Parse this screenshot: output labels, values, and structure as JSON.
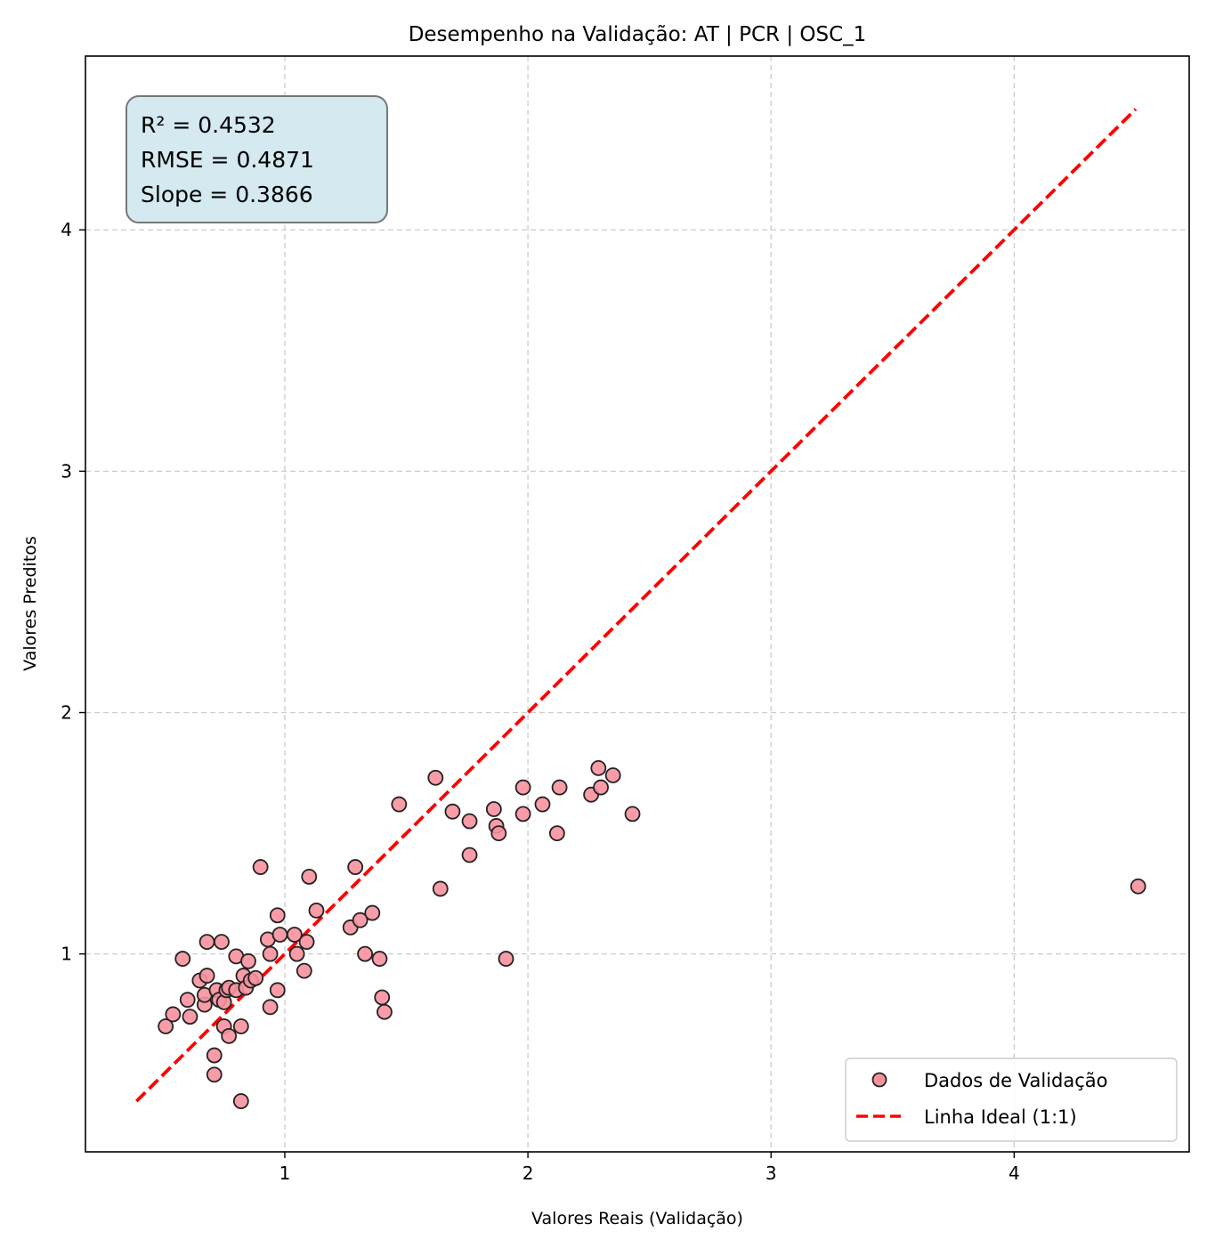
{
  "chart_data": {
    "type": "scatter",
    "title": "Desempenho na Validação: AT | PCR | OSC_1",
    "xlabel": "Valores Reais (Validação)",
    "ylabel": "Valores Preditos",
    "xlim": [
      0.18,
      4.72
    ],
    "ylim": [
      0.18,
      4.72
    ],
    "xticks": [
      1,
      2,
      3,
      4
    ],
    "yticks": [
      1,
      2,
      3,
      4
    ],
    "grid": true,
    "legend_position": "lower-right",
    "stats_box": {
      "lines": [
        "R² = 0.4532",
        "RMSE = 0.4871",
        "Slope = 0.3866"
      ],
      "position": "top-left"
    },
    "series": [
      {
        "name": "Dados de Validação",
        "kind": "scatter",
        "color": "#f7919f",
        "edge_color": "#222222",
        "points": [
          [
            0.51,
            0.7
          ],
          [
            0.54,
            0.75
          ],
          [
            0.58,
            0.98
          ],
          [
            0.6,
            0.81
          ],
          [
            0.61,
            0.74
          ],
          [
            0.65,
            0.89
          ],
          [
            0.67,
            0.79
          ],
          [
            0.67,
            0.83
          ],
          [
            0.68,
            0.91
          ],
          [
            0.68,
            1.05
          ],
          [
            0.71,
            0.58
          ],
          [
            0.71,
            0.5
          ],
          [
            0.72,
            0.85
          ],
          [
            0.73,
            0.81
          ],
          [
            0.74,
            1.05
          ],
          [
            0.75,
            0.8
          ],
          [
            0.75,
            0.7
          ],
          [
            0.76,
            0.85
          ],
          [
            0.77,
            0.86
          ],
          [
            0.77,
            0.66
          ],
          [
            0.8,
            0.85
          ],
          [
            0.8,
            0.99
          ],
          [
            0.82,
            0.7
          ],
          [
            0.82,
            0.39
          ],
          [
            0.83,
            0.91
          ],
          [
            0.84,
            0.86
          ],
          [
            0.85,
            0.97
          ],
          [
            0.86,
            0.89
          ],
          [
            0.88,
            0.9
          ],
          [
            0.9,
            1.36
          ],
          [
            0.93,
            1.06
          ],
          [
            0.94,
            1.0
          ],
          [
            0.94,
            0.78
          ],
          [
            0.97,
            0.85
          ],
          [
            0.97,
            1.16
          ],
          [
            0.98,
            1.08
          ],
          [
            1.04,
            1.08
          ],
          [
            1.05,
            1.0
          ],
          [
            1.08,
            0.93
          ],
          [
            1.09,
            1.05
          ],
          [
            1.1,
            1.32
          ],
          [
            1.13,
            1.18
          ],
          [
            1.27,
            1.11
          ],
          [
            1.29,
            1.36
          ],
          [
            1.31,
            1.14
          ],
          [
            1.33,
            1.0
          ],
          [
            1.36,
            1.17
          ],
          [
            1.39,
            0.98
          ],
          [
            1.4,
            0.82
          ],
          [
            1.41,
            0.76
          ],
          [
            1.47,
            1.62
          ],
          [
            1.62,
            1.73
          ],
          [
            1.64,
            1.27
          ],
          [
            1.69,
            1.59
          ],
          [
            1.76,
            1.55
          ],
          [
            1.76,
            1.41
          ],
          [
            1.86,
            1.6
          ],
          [
            1.87,
            1.53
          ],
          [
            1.88,
            1.5
          ],
          [
            1.91,
            0.98
          ],
          [
            1.98,
            1.69
          ],
          [
            1.98,
            1.58
          ],
          [
            2.06,
            1.62
          ],
          [
            2.12,
            1.5
          ],
          [
            2.13,
            1.69
          ],
          [
            2.26,
            1.66
          ],
          [
            2.29,
            1.77
          ],
          [
            2.3,
            1.69
          ],
          [
            2.35,
            1.74
          ],
          [
            2.43,
            1.58
          ],
          [
            4.51,
            1.28
          ]
        ]
      },
      {
        "name": "Linha Ideal (1:1)",
        "kind": "line",
        "color": "#ff0000",
        "dashed": true,
        "x": [
          0.39,
          4.5
        ],
        "y": [
          0.39,
          4.5
        ]
      }
    ]
  }
}
